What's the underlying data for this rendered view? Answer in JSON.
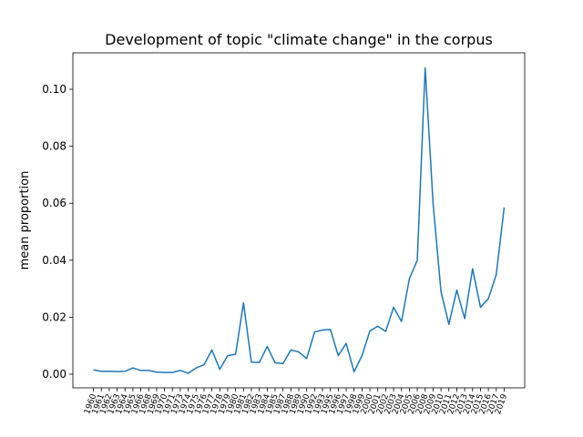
{
  "chart_data": {
    "type": "line",
    "title": "Development of topic \"climate change\" in the corpus",
    "y_label": "mean proportion",
    "categories": [
      "1960",
      "1961",
      "1962",
      "1963",
      "1964",
      "1965",
      "1966",
      "1968",
      "1969",
      "1970",
      "1971",
      "1973",
      "1974",
      "1975",
      "1976",
      "1977",
      "1978",
      "1979",
      "1980",
      "1981",
      "1982",
      "1983",
      "1984",
      "1985",
      "1987",
      "1988",
      "1989",
      "1990",
      "1992",
      "1993",
      "1995",
      "1996",
      "1997",
      "1998",
      "1999",
      "2000",
      "2001",
      "2002",
      "2003",
      "2004",
      "2005",
      "2006",
      "2008",
      "2009",
      "2010",
      "2011",
      "2012",
      "2013",
      "2014",
      "2015",
      "2016",
      "2017",
      "2019"
    ],
    "series": [
      {
        "name": "mean proportion",
        "color": "#1f77b4",
        "values": [
          0.0015,
          0.001,
          0.001,
          0.0009,
          0.001,
          0.0022,
          0.0013,
          0.0013,
          0.0007,
          0.0006,
          0.0006,
          0.0013,
          0.0003,
          0.0022,
          0.0033,
          0.0085,
          0.0017,
          0.0065,
          0.007,
          0.025,
          0.0042,
          0.0041,
          0.0097,
          0.004,
          0.0037,
          0.0085,
          0.0078,
          0.0055,
          0.0148,
          0.0155,
          0.0157,
          0.0065,
          0.0108,
          0.0008,
          0.0065,
          0.0152,
          0.0168,
          0.015,
          0.0235,
          0.0185,
          0.0335,
          0.04,
          0.1075,
          0.06,
          0.029,
          0.0175,
          0.0295,
          0.0195,
          0.037,
          0.0235,
          0.0265,
          0.035,
          0.0585
        ]
      }
    ],
    "ylim": [
      -0.0048,
      0.1128
    ],
    "yticks": [
      {
        "value": 0,
        "label": "0.00"
      },
      {
        "value": 0.02,
        "label": "0.02"
      },
      {
        "value": 0.04,
        "label": "0.04"
      },
      {
        "value": 0.06,
        "label": "0.06"
      },
      {
        "value": 0.08,
        "label": "0.08"
      },
      {
        "value": 0.1,
        "label": "0.10"
      }
    ],
    "grid": false
  }
}
